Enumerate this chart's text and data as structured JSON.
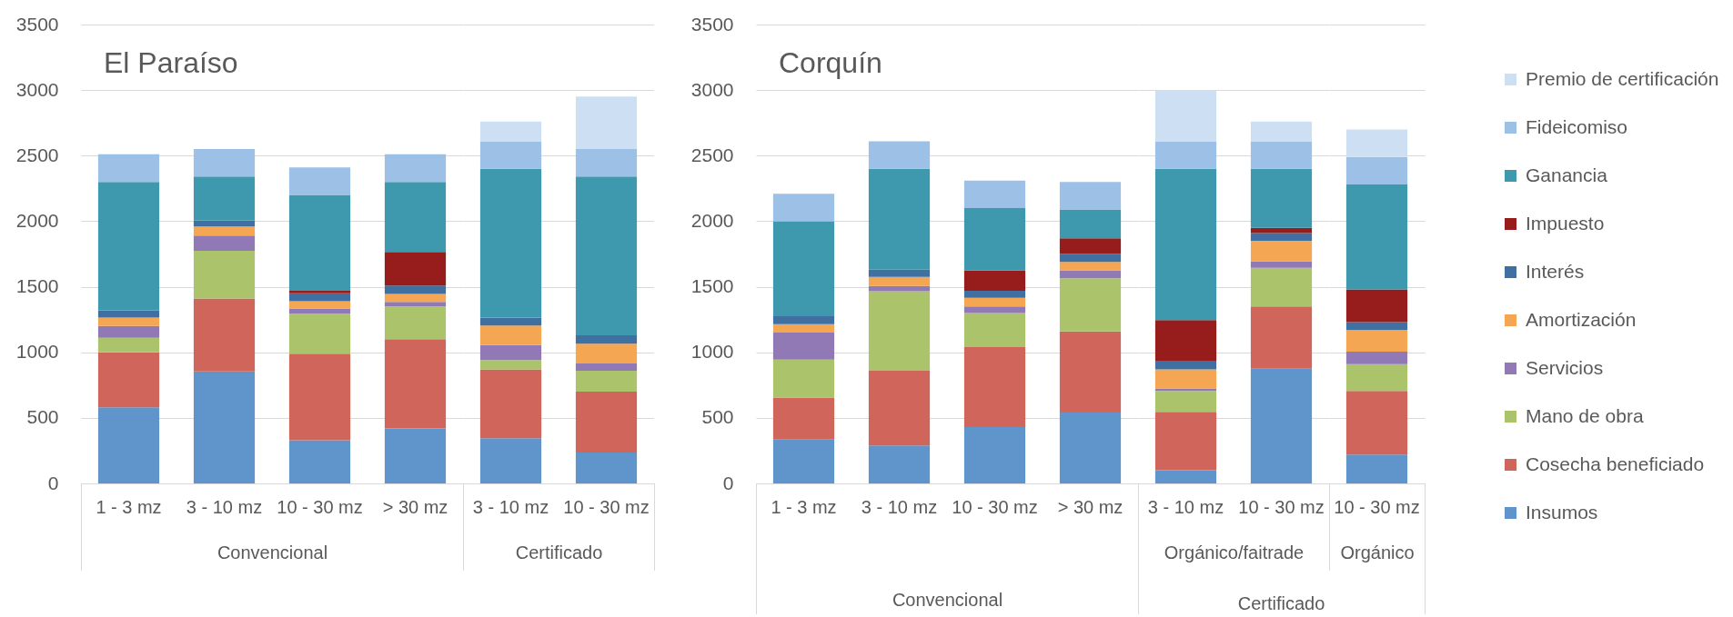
{
  "chart_data": [
    {
      "type": "bar",
      "title": "El Paraíso",
      "categories": [
        "1 - 3 mz",
        "3 - 10 mz",
        "10 - 30 mz",
        "> 30 mz"
      ],
      "xlabel": "Convencional",
      "stacked": true,
      "ylim": [
        0,
        3500
      ],
      "yticks": [
        0,
        500,
        1000,
        1500,
        2000,
        2500,
        3000,
        3500
      ],
      "grid": "y",
      "series": [
        {
          "color": "#5f95cb",
          "values": [
            580,
            855,
            330,
            420
          ]
        },
        {
          "color": "#d0655b",
          "values": [
            420,
            555,
            660,
            680
          ]
        },
        {
          "color": "#abc46b",
          "values": [
            110,
            365,
            305,
            250
          ]
        },
        {
          "color": "#9179b6",
          "values": [
            90,
            115,
            40,
            35
          ]
        },
        {
          "color": "#f5a652",
          "values": [
            65,
            70,
            55,
            60
          ]
        },
        {
          "color": "#3f70a1",
          "values": [
            55,
            45,
            60,
            65
          ]
        },
        {
          "color": "#961d1b",
          "values": [
            null,
            null,
            20,
            255
          ]
        },
        {
          "color": "#3e99ae",
          "values": [
            980,
            335,
            730,
            535
          ]
        },
        {
          "color": "#9cc0e6",
          "values": [
            210,
            210,
            210,
            210
          ]
        }
      ]
    },
    {
      "type": "bar",
      "categories": [
        "3 - 10 mz",
        "10 - 30 mz"
      ],
      "xlabel": "Certificado",
      "stacked": true,
      "ylim": [
        0,
        3500
      ],
      "yticks": [
        0,
        500,
        1000,
        1500,
        2000,
        2500,
        3000,
        3500
      ],
      "grid": "y",
      "tick_labels": "x",
      "series": [
        {
          "color": "#5f95cb",
          "values": [
            345,
            235
          ]
        },
        {
          "color": "#d0655b",
          "values": [
            525,
            465
          ]
        },
        {
          "color": "#abc46b",
          "values": [
            70,
            160
          ]
        },
        {
          "color": "#9179b6",
          "values": [
            115,
            55
          ]
        },
        {
          "color": "#f5a652",
          "values": [
            150,
            150
          ]
        },
        {
          "color": "#3f70a1",
          "values": [
            60,
            65
          ]
        },
        {
          "color": "#3e99ae",
          "values": [
            1135,
            1210
          ]
        },
        {
          "color": "#9cc0e6",
          "values": [
            210,
            210
          ]
        },
        {
          "color": "#cde0f3",
          "values": [
            150,
            400
          ]
        }
      ]
    },
    {
      "type": "bar",
      "title": "Corquín",
      "categories": [
        "1 - 3 mz",
        "3 - 10 mz",
        "10 - 30 mz",
        "> 30 mz"
      ],
      "xlabel": "Convencional",
      "stacked": true,
      "ylim": [
        0,
        3500
      ],
      "yticks": [
        0,
        500,
        1000,
        1500,
        2000,
        2500,
        3000,
        3500
      ],
      "grid": "y",
      "series": [
        {
          "color": "#5f95cb",
          "values": [
            335,
            290,
            430,
            540
          ]
        },
        {
          "color": "#d0655b",
          "values": [
            320,
            570,
            610,
            620
          ]
        },
        {
          "color": "#abc46b",
          "values": [
            290,
            605,
            260,
            405
          ]
        },
        {
          "color": "#9179b6",
          "values": [
            205,
            40,
            50,
            60
          ]
        },
        {
          "color": "#f5a652",
          "values": [
            65,
            70,
            65,
            65
          ]
        },
        {
          "color": "#3f70a1",
          "values": [
            60,
            55,
            55,
            60
          ]
        },
        {
          "color": "#961d1b",
          "values": [
            null,
            null,
            155,
            120
          ]
        },
        {
          "color": "#3e99ae",
          "values": [
            725,
            770,
            475,
            220
          ]
        },
        {
          "color": "#9cc0e6",
          "values": [
            210,
            210,
            210,
            210
          ]
        }
      ]
    },
    {
      "type": "bar",
      "categories": [
        "3 - 10 mz",
        "10 - 30 mz"
      ],
      "xlabel": "Orgánico/faitrade",
      "annotations": [
        "Certificado"
      ],
      "stacked": true,
      "ylim": [
        0,
        3500
      ],
      "yticks": [
        0,
        500,
        1000,
        1500,
        2000,
        2500,
        3000,
        3500
      ],
      "grid": "y",
      "tick_labels": "x",
      "series": [
        {
          "color": "#5f95cb",
          "values": [
            100,
            875
          ]
        },
        {
          "color": "#d0655b",
          "values": [
            445,
            475
          ]
        },
        {
          "color": "#abc46b",
          "values": [
            160,
            295
          ]
        },
        {
          "color": "#9179b6",
          "values": [
            20,
            50
          ]
        },
        {
          "color": "#f5a652",
          "values": [
            145,
            155
          ]
        },
        {
          "color": "#3f70a1",
          "values": [
            65,
            60
          ]
        },
        {
          "color": "#961d1b",
          "values": [
            310,
            40
          ]
        },
        {
          "color": "#3e99ae",
          "values": [
            1155,
            450
          ]
        },
        {
          "color": "#9cc0e6",
          "values": [
            210,
            210
          ]
        },
        {
          "color": "#cde0f3",
          "values": [
            390,
            150
          ]
        }
      ]
    },
    {
      "type": "bar",
      "categories": [
        "10 - 30 mz"
      ],
      "xlabel": "Orgánico",
      "stacked": true,
      "ylim": [
        0,
        3500
      ],
      "yticks": [
        0,
        500,
        1000,
        1500,
        2000,
        2500,
        3000,
        3500
      ],
      "grid": "y",
      "tick_labels": "x",
      "legend": "right",
      "series": [
        {
          "name": "Insumos",
          "color": "#5f95cb",
          "values": [
            220
          ]
        },
        {
          "name": "Cosecha beneficiado",
          "color": "#d0655b",
          "values": [
            485
          ]
        },
        {
          "name": "Mano de obra",
          "color": "#abc46b",
          "values": [
            205
          ]
        },
        {
          "name": "Servicios",
          "color": "#9179b6",
          "values": [
            95
          ]
        },
        {
          "name": "Amortización",
          "color": "#f5a652",
          "values": [
            165
          ]
        },
        {
          "name": "Interés",
          "color": "#3f70a1",
          "values": [
            60
          ]
        },
        {
          "name": "Impuesto",
          "color": "#961d1b",
          "values": [
            250
          ]
        },
        {
          "name": "Ganancia",
          "color": "#3e99ae",
          "values": [
            800
          ]
        },
        {
          "name": "Fideicomiso",
          "color": "#9cc0e6",
          "values": [
            210
          ]
        },
        {
          "name": "Premio de certificación",
          "color": "#cde0f3",
          "values": [
            210
          ]
        }
      ]
    }
  ]
}
